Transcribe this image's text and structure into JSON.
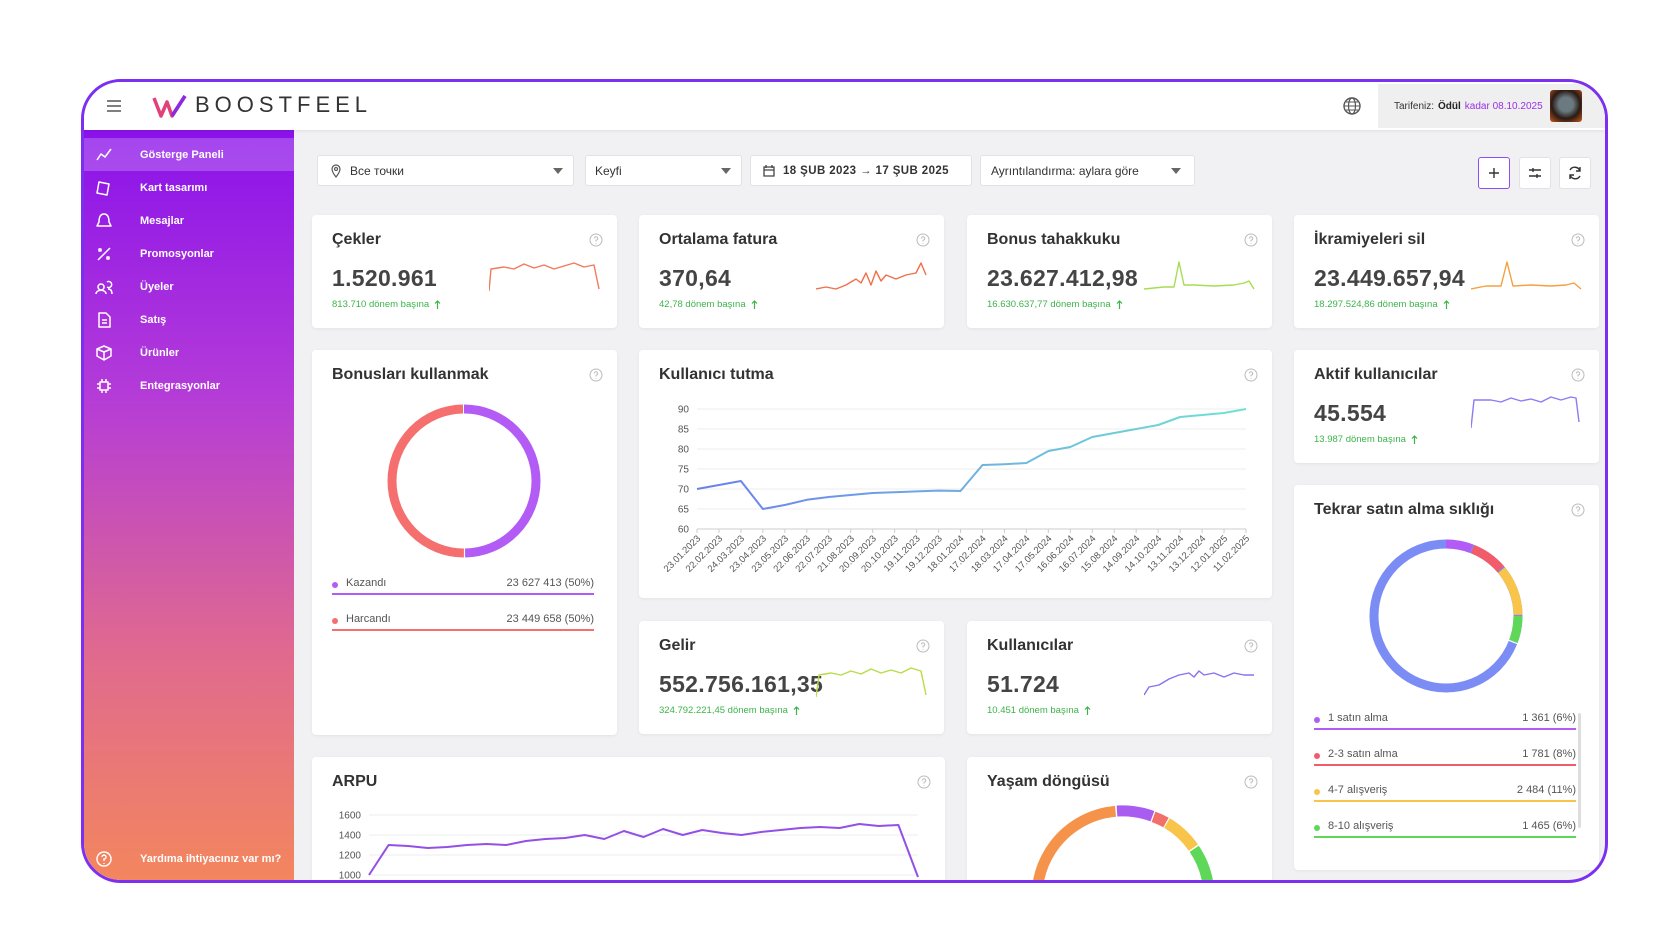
{
  "header": {
    "logo": "BOOSTFEEL",
    "plan_label": "Tarifeniz:",
    "plan_name": "Ödül",
    "plan_until": "kadar 08.10.2025"
  },
  "sidebar": {
    "items": [
      "Gösterge Paneli",
      "Kart tasarımı",
      "Mesajlar",
      "Promosyonlar",
      "Üyeler",
      "Satış",
      "Ürünler",
      "Entegrasyonlar"
    ],
    "help": "Yardıma ihtiyacınız var mı?"
  },
  "filters": {
    "location": "Все точки",
    "period": "Keyfi",
    "date_range": "18 ŞUB 2023 → 17 ŞUB 2025",
    "detail": "Ayrıntılandırma: aylara göre"
  },
  "kpis": [
    {
      "title": "Çekler",
      "value": "1.520.961",
      "sub": "813.710 dönem başına",
      "spark_color": "#f27a5a"
    },
    {
      "title": "Ortalama fatura",
      "value": "370,64",
      "sub": "42,78 dönem başına",
      "spark_color": "#f0704a"
    },
    {
      "title": "Bonus tahakkuku",
      "value": "23.627.412,98",
      "sub": "16.630.637,77 dönem başına",
      "spark_color": "#a6de52"
    },
    {
      "title": "İkramiyeleri sil",
      "value": "23.449.657,94",
      "sub": "18.297.524,86 dönem başına",
      "spark_color": "#f5a040"
    },
    {
      "title": "Aktif kullanıcılar",
      "value": "45.554",
      "sub": "13.987 dönem başına",
      "spark_color": "#8a7cf5"
    },
    {
      "title": "Gelir",
      "value": "552.756.161,35",
      "sub": "324.792.221,45 dönem başına",
      "spark_color": "#b8dc48"
    },
    {
      "title": "Kullanıcılar",
      "value": "51.724",
      "sub": "10.451 dönem başına",
      "spark_color": "#8a70f0"
    }
  ],
  "bonus_usage": {
    "title": "Bonusları kullanmak",
    "items": [
      {
        "name": "Kazandı",
        "value": "23 627 413 (50%)",
        "share": 50,
        "color": "#b35cf5"
      },
      {
        "name": "Harcandı",
        "value": "23 449 658 (50%)",
        "share": 50,
        "color": "#f56f6f"
      }
    ]
  },
  "repeat_purchase": {
    "title": "Tekrar satın alma sıklığı",
    "items": [
      {
        "name": "1 satın alma",
        "value": "1 361 (6%)",
        "share": 6,
        "color": "#b35cf5"
      },
      {
        "name": "2-3 satın alma",
        "value": "1 781 (8%)",
        "share": 8,
        "color": "#f25c6a"
      },
      {
        "name": "4-7 alışveriş",
        "value": "2 484 (11%)",
        "share": 11,
        "color": "#f8c54a"
      },
      {
        "name": "8-10 alışveriş",
        "value": "1 465 (6%)",
        "share": 6,
        "color": "#5fd85a"
      }
    ]
  },
  "retention": {
    "title": "Kullanıcı tutma",
    "categories": [
      "23.01.2023",
      "22.02.2023",
      "24.03.2023",
      "23.04.2023",
      "23.05.2023",
      "22.06.2023",
      "22.07.2023",
      "21.08.2023",
      "20.09.2023",
      "20.10.2023",
      "19.11.2023",
      "19.12.2023",
      "18.01.2024",
      "17.02.2024",
      "18.03.2024",
      "17.04.2024",
      "17.05.2024",
      "16.06.2024",
      "16.07.2024",
      "15.08.2024",
      "14.09.2024",
      "14.10.2024",
      "13.11.2024",
      "13.12.2024",
      "12.01.2025",
      "11.02.2025"
    ],
    "values": [
      70,
      71,
      72,
      65,
      66,
      67.3,
      68,
      68.5,
      69,
      69.2,
      69.4,
      69.6,
      69.5,
      76,
      76.2,
      76.5,
      79.5,
      80.5,
      83,
      84,
      85,
      86,
      88,
      88.5,
      89,
      90
    ],
    "ylim": [
      60,
      90
    ],
    "yticks": [
      60,
      65,
      70,
      75,
      80,
      85,
      90
    ],
    "grid": true
  },
  "arpu": {
    "title": "ARPU",
    "values": [
      1000,
      1300,
      1290,
      1270,
      1280,
      1300,
      1310,
      1300,
      1340,
      1360,
      1370,
      1400,
      1360,
      1440,
      1380,
      1460,
      1400,
      1450,
      1420,
      1400,
      1430,
      1450,
      1470,
      1480,
      1470,
      1510,
      1490,
      1500,
      980
    ],
    "ylim": [
      980,
      1650
    ],
    "yticks": [
      1000,
      1200,
      1400,
      1600
    ],
    "grid": true,
    "color": "#9350e6"
  },
  "lifecycle": {
    "title": "Yaşam döngüsü"
  }
}
